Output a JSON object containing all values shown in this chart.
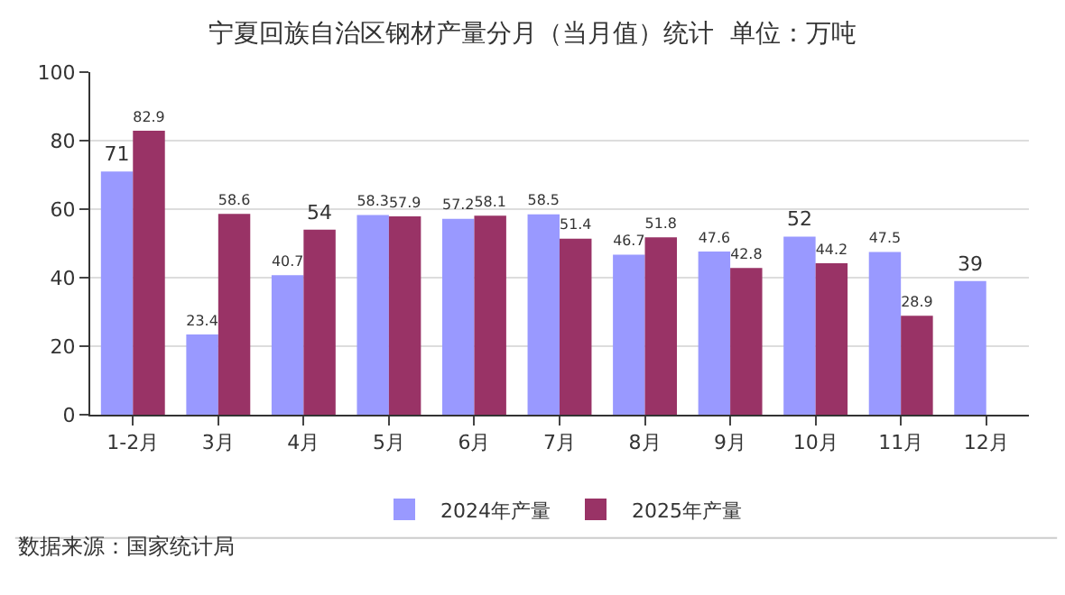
{
  "chart_data": {
    "type": "bar",
    "title": "宁夏回族自治区钢材产量分月（当月值）统计  单位：万吨",
    "categories": [
      "1-2月",
      "3月",
      "4月",
      "5月",
      "6月",
      "7月",
      "8月",
      "9月",
      "10月",
      "11月",
      "12月"
    ],
    "series": [
      {
        "name": "2024年产量",
        "color": "#9999ff",
        "values": [
          71,
          23.4,
          40.7,
          58.3,
          57.2,
          58.5,
          46.7,
          47.6,
          52,
          47.5,
          39
        ]
      },
      {
        "name": "2025年产量",
        "color": "#993366",
        "values": [
          82.9,
          58.6,
          54,
          57.9,
          58.1,
          51.4,
          51.8,
          42.8,
          44.2,
          28.9,
          null
        ]
      }
    ],
    "ylim": [
      0,
      100
    ],
    "yticks": [
      0,
      20,
      40,
      60,
      80,
      100
    ],
    "grid": "y",
    "legend": "bottom",
    "data_labels": true,
    "annotations": [
      "数据来源：国家统计局"
    ]
  }
}
